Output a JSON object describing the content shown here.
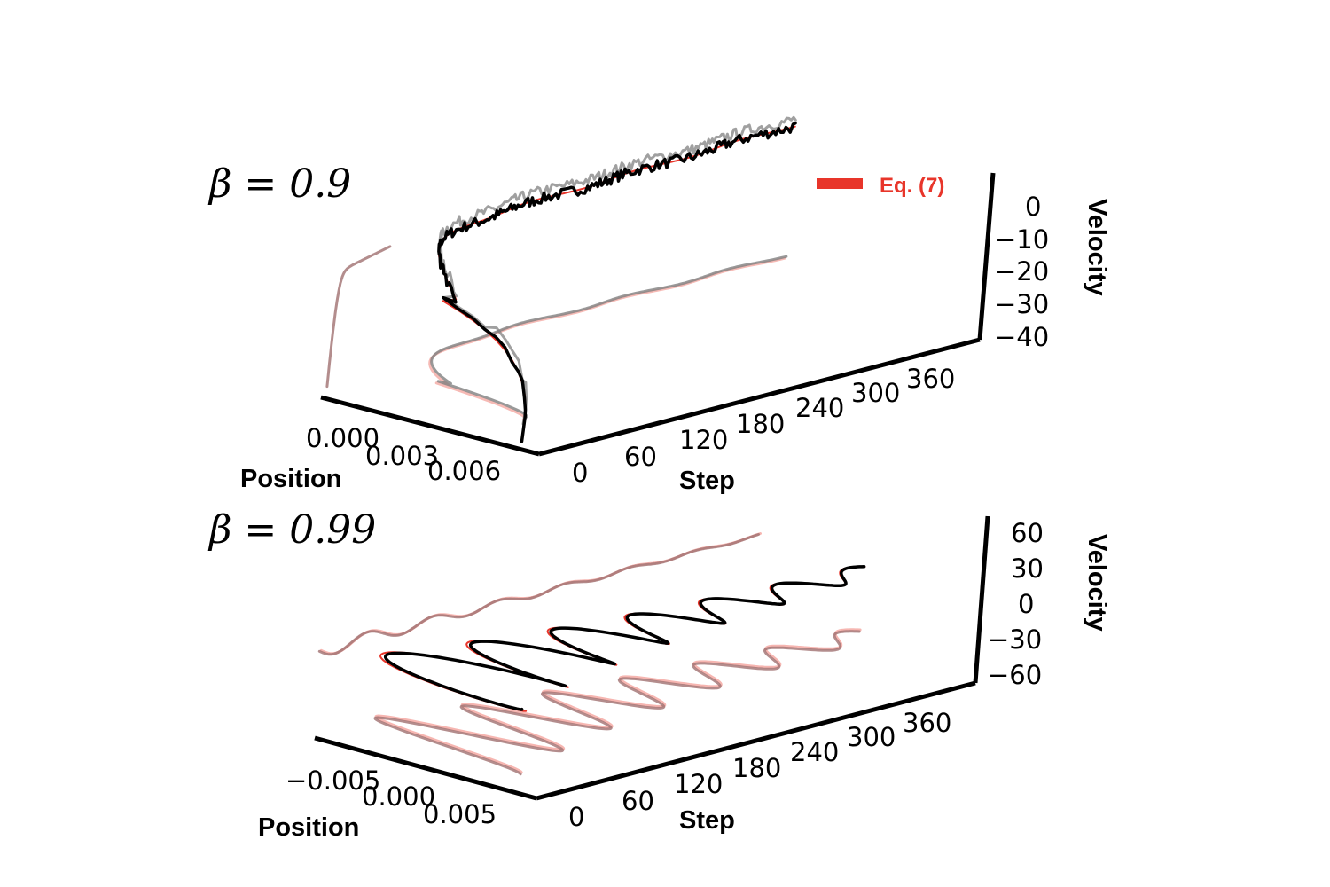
{
  "colors": {
    "sim": "#000000",
    "sim_shadow": "#808080",
    "eq": "#e8352a",
    "eq_shadow": "#f4a9a3",
    "projection": "#a07070"
  },
  "legend": {
    "label": "Eq. (7)",
    "color": "#e8352a"
  },
  "chart_data": [
    {
      "type": "line",
      "title": "β = 0.9",
      "beta": 0.9,
      "xlabel": "Step",
      "ylabel": "Position",
      "zlabel": "Velocity",
      "x_ticks": [
        "0",
        "60",
        "120",
        "180",
        "240",
        "300",
        "360"
      ],
      "y_ticks": [
        "0.000",
        "0.003",
        "0.006"
      ],
      "z_ticks": [
        "0",
        "−10",
        "−20",
        "−30",
        "−40"
      ],
      "xlim": [
        0,
        400
      ],
      "ylim": [
        -0.001,
        0.0075
      ],
      "zlim": [
        -42,
        8
      ],
      "series": [
        {
          "role": "simulation",
          "color": "#000000",
          "noisy": true
        },
        {
          "role": "Eq. (7)",
          "color": "#e8352a",
          "noisy": false
        }
      ],
      "dynamics": {
        "v0": -40,
        "decay": 0.055,
        "pos_start": 0.0068,
        "pos_end": -0.0003,
        "pos_tau": 30,
        "freq": 0.0,
        "drift": 0.0
      }
    },
    {
      "type": "line",
      "title": "β = 0.99",
      "beta": 0.99,
      "xlabel": "Step",
      "ylabel": "Position",
      "zlabel": "Velocity",
      "x_ticks": [
        "0",
        "60",
        "120",
        "180",
        "240",
        "300",
        "360"
      ],
      "y_ticks": [
        "−0.005",
        "0.000",
        "0.005"
      ],
      "z_ticks": [
        "60",
        "30",
        "0",
        "−30",
        "−60"
      ],
      "xlim": [
        0,
        400
      ],
      "ylim": [
        -0.008,
        0.008
      ],
      "zlim": [
        -70,
        70
      ],
      "series": [
        {
          "role": "simulation",
          "color": "#000000",
          "noisy": false
        },
        {
          "role": "Eq. (7)",
          "color": "#e8352a",
          "noisy": false
        }
      ],
      "dynamics": {
        "amp": 0.0065,
        "decay": 0.0048,
        "period": 60
      }
    }
  ]
}
